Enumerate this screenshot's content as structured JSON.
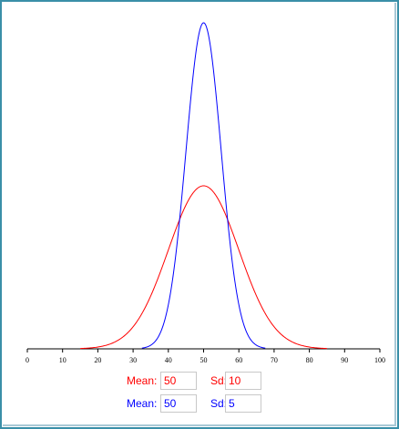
{
  "chart_data": {
    "type": "line",
    "x_range": [
      0,
      100
    ],
    "x_ticks": [
      "0",
      "10",
      "20",
      "30",
      "40",
      "50",
      "60",
      "70",
      "80",
      "90",
      "100"
    ],
    "series": [
      {
        "mean": 50,
        "sd": 10,
        "color": "#ff0000"
      },
      {
        "mean": 50,
        "sd": 5,
        "color": "#0000ff"
      }
    ],
    "grid": false
  },
  "controls": {
    "red": {
      "mean_label": "Mean:",
      "mean_value": "50",
      "sd_label": "Sd:",
      "sd_value": "10",
      "color": "#ff0000"
    },
    "blue": {
      "mean_label": "Mean:",
      "mean_value": "50",
      "sd_label": "Sd:",
      "sd_value": "5",
      "color": "#0000ff"
    }
  }
}
